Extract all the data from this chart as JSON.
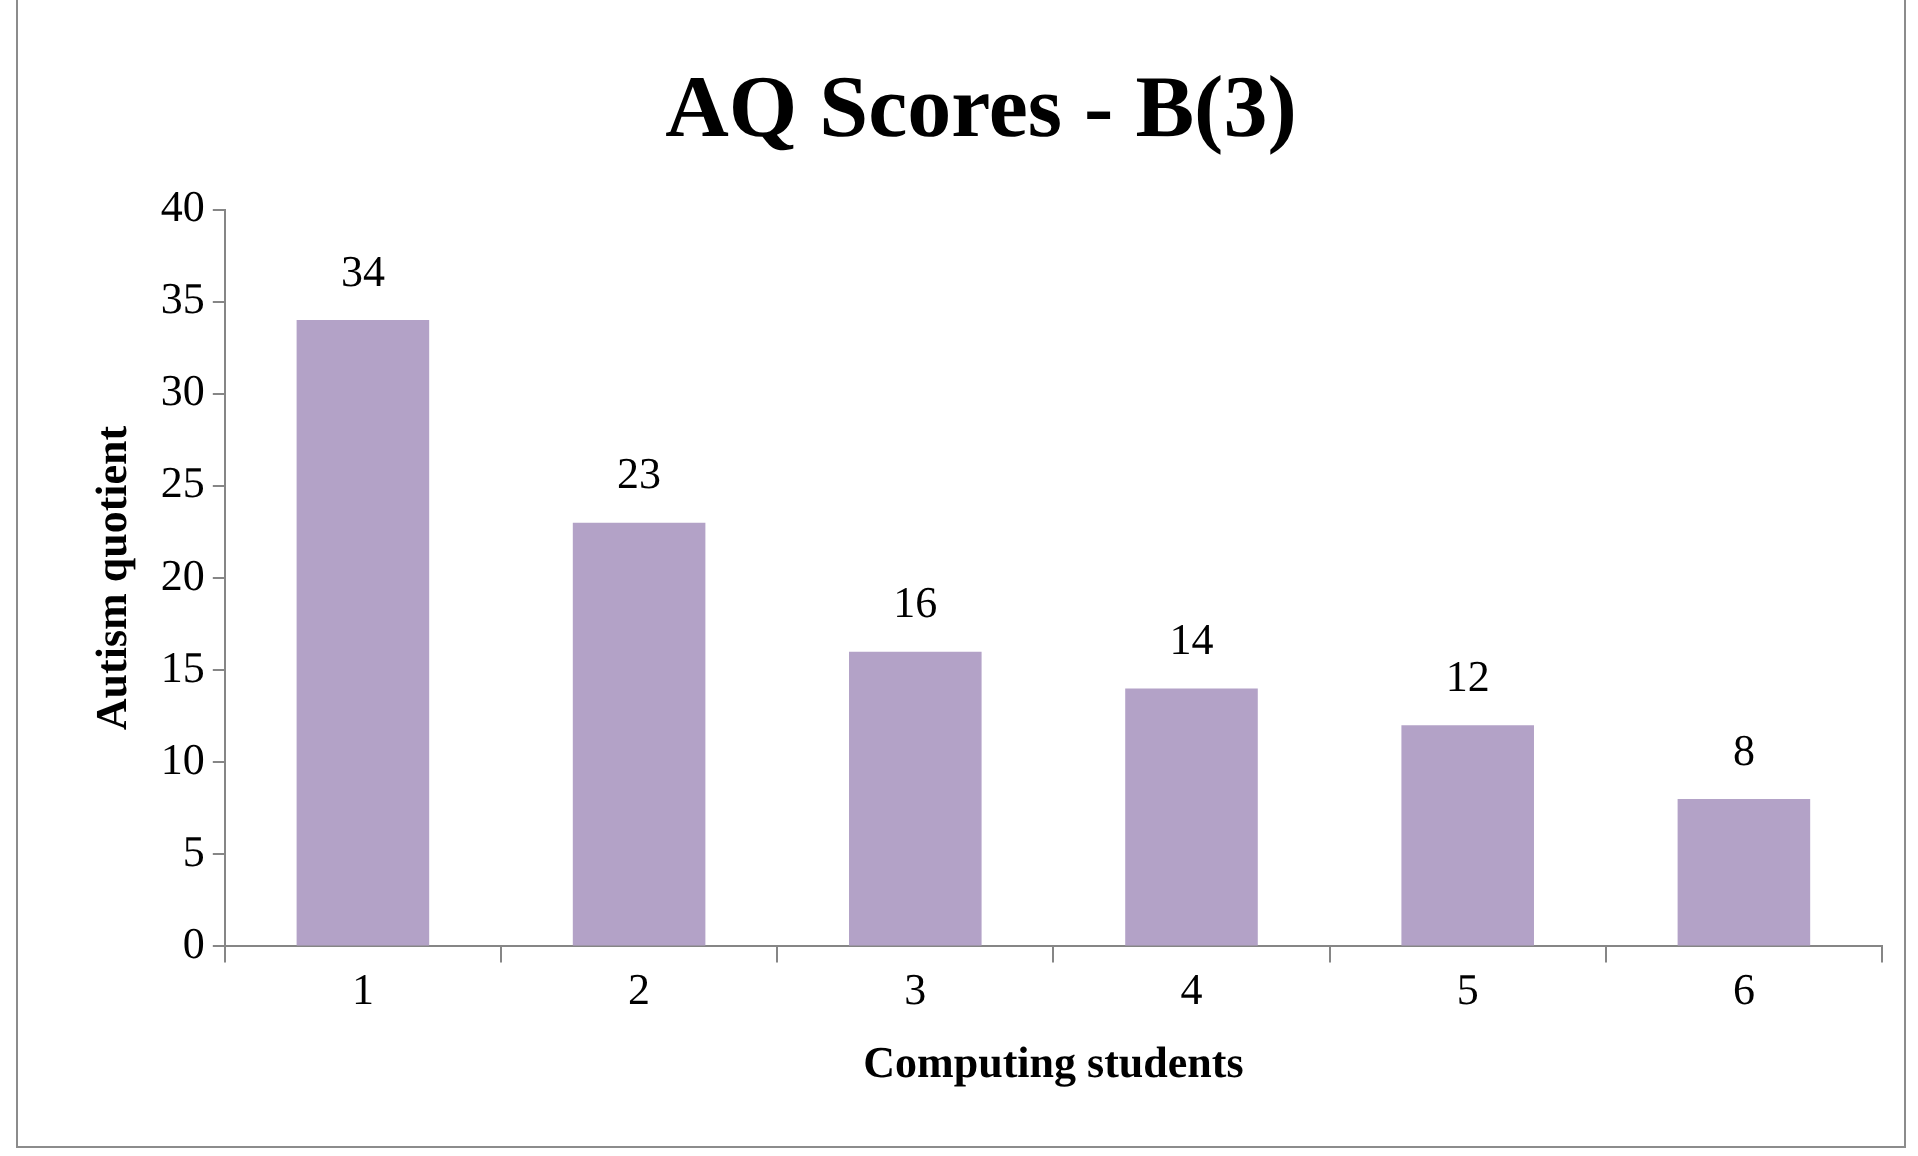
{
  "chart_data": {
    "type": "bar",
    "title": "AQ Scores - B(3)",
    "xlabel": "Computing students",
    "ylabel": "Autism quotient",
    "categories": [
      "1",
      "2",
      "3",
      "4",
      "5",
      "6"
    ],
    "values": [
      34,
      23,
      16,
      14,
      12,
      8
    ],
    "color": "#b3a2c7",
    "ylim": [
      0,
      40
    ],
    "yticks": [
      0,
      5,
      10,
      15,
      20,
      25,
      30,
      35,
      40
    ],
    "grid": false,
    "legend": false,
    "data_labels": true
  }
}
